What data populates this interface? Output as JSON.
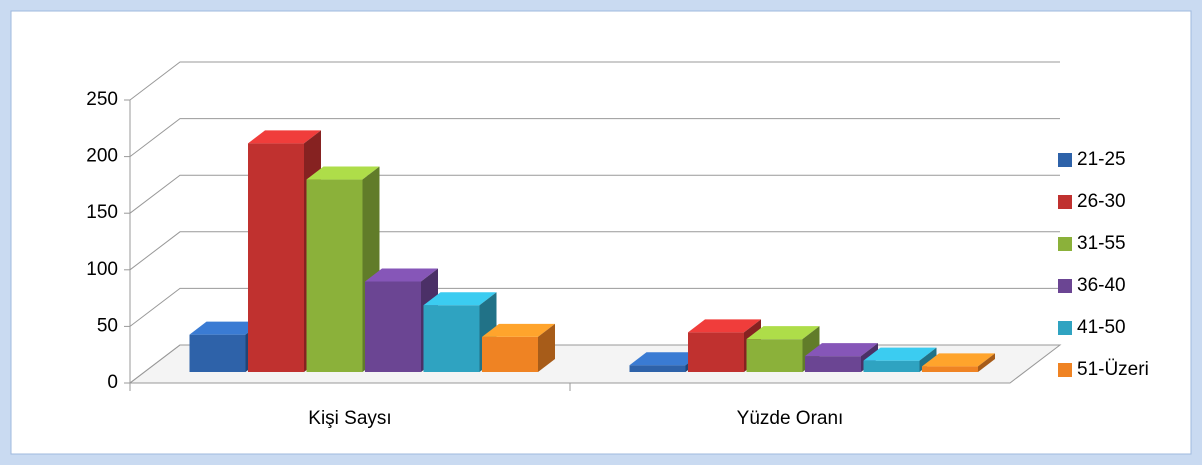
{
  "chart_data": {
    "type": "bar3d",
    "categories": [
      "Kişi Saysı",
      "Yüzde Oranı"
    ],
    "series": [
      {
        "name": "21-25",
        "color": "#2e62a9",
        "values": [
          33,
          6
        ]
      },
      {
        "name": "26-30",
        "color": "#c0312f",
        "values": [
          202,
          35
        ]
      },
      {
        "name": "31-55",
        "color": "#8bb13a",
        "values": [
          170,
          29
        ]
      },
      {
        "name": "36-40",
        "color": "#6b4593",
        "values": [
          80,
          14
        ]
      },
      {
        "name": "41-50",
        "color": "#2fa3c1",
        "values": [
          59,
          10
        ]
      },
      {
        "name": "51-Üzeri",
        "color": "#ef8323",
        "values": [
          31,
          5
        ]
      }
    ],
    "ylim": [
      0,
      250
    ],
    "yticks": [
      0,
      50,
      100,
      150,
      200,
      250
    ],
    "grid": true,
    "legend": "right"
  }
}
